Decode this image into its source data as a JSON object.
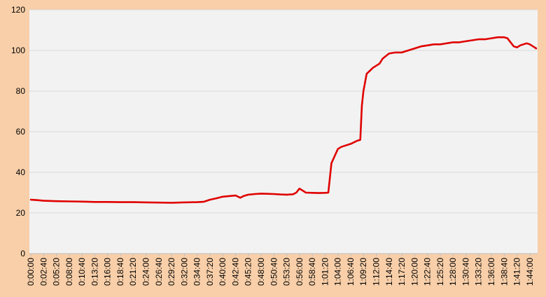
{
  "chart_data": {
    "type": "line",
    "title": "",
    "xlabel": "",
    "ylabel": "",
    "ylim": [
      0,
      120
    ],
    "yticks": [
      0,
      20,
      40,
      60,
      80,
      100,
      120
    ],
    "grid": "horizontal",
    "legend": "none",
    "xtick_labels": [
      "0:00:00",
      "0:02:40",
      "0:05:20",
      "0:08:00",
      "0:10:40",
      "0:13:20",
      "0:16:00",
      "0:18:40",
      "0:21:20",
      "0:24:00",
      "0:26:40",
      "0:29:20",
      "0:32:00",
      "0:34:40",
      "0:37:20",
      "0:40:00",
      "0:42:40",
      "0:45:20",
      "0:48:00",
      "0:50:40",
      "0:53:20",
      "0:56:00",
      "0:58:40",
      "1:01:20",
      "1:04:00",
      "1:06:40",
      "1:09:20",
      "1:12:00",
      "1:14:40",
      "1:17:20",
      "1:20:00",
      "1:22:40",
      "1:25:20",
      "1:28:00",
      "1:30:40",
      "1:33:20",
      "1:36:00",
      "1:38:40",
      "1:41:20",
      "1:44:00"
    ],
    "series": [
      {
        "color": "#e00000",
        "x": [
          "0:00:00",
          "0:01:20",
          "0:02:40",
          "0:05:20",
          "0:08:00",
          "0:10:40",
          "0:13:20",
          "0:16:00",
          "0:18:40",
          "0:21:20",
          "0:24:00",
          "0:26:40",
          "0:29:20",
          "0:32:00",
          "0:34:40",
          "0:36:00",
          "0:37:20",
          "0:38:40",
          "0:40:00",
          "0:41:20",
          "0:42:40",
          "0:43:40",
          "0:44:20",
          "0:45:20",
          "0:46:40",
          "0:48:00",
          "0:49:20",
          "0:50:40",
          "0:52:00",
          "0:53:20",
          "0:54:40",
          "0:55:20",
          "0:56:00",
          "0:57:20",
          "0:58:40",
          "1:00:00",
          "1:01:20",
          "1:02:00",
          "1:02:40",
          "1:03:20",
          "1:04:00",
          "1:04:40",
          "1:05:20",
          "1:06:40",
          "1:08:00",
          "1:08:40",
          "1:09:00",
          "1:09:20",
          "1:10:00",
          "1:10:40",
          "1:11:20",
          "1:12:00",
          "1:12:40",
          "1:13:20",
          "1:14:40",
          "1:16:00",
          "1:17:20",
          "1:18:40",
          "1:20:00",
          "1:21:20",
          "1:22:40",
          "1:24:00",
          "1:25:20",
          "1:26:40",
          "1:28:00",
          "1:29:20",
          "1:30:40",
          "1:32:00",
          "1:33:20",
          "1:34:40",
          "1:36:00",
          "1:37:20",
          "1:38:40",
          "1:39:20",
          "1:40:00",
          "1:40:40",
          "1:41:20",
          "1:42:00",
          "1:42:40",
          "1:43:20",
          "1:44:00",
          "1:44:40",
          "1:45:20"
        ],
        "values": [
          26.5,
          26.3,
          26.0,
          25.8,
          25.7,
          25.6,
          25.4,
          25.4,
          25.3,
          25.3,
          25.2,
          25.1,
          25.0,
          25.2,
          25.3,
          25.5,
          26.5,
          27.2,
          28.0,
          28.3,
          28.6,
          27.5,
          28.3,
          29.0,
          29.3,
          29.5,
          29.4,
          29.3,
          29.1,
          29.0,
          29.2,
          30.0,
          32.0,
          30.0,
          29.9,
          29.8,
          29.9,
          30.0,
          44.5,
          48.0,
          51.5,
          52.5,
          53.0,
          54.0,
          55.5,
          56.0,
          73.0,
          80.0,
          88.5,
          90.0,
          91.5,
          92.5,
          93.5,
          96.0,
          98.5,
          99.0,
          99.0,
          100.0,
          101.0,
          102.0,
          102.5,
          103.0,
          103.0,
          103.5,
          104.0,
          104.0,
          104.5,
          105.0,
          105.5,
          105.5,
          106.0,
          106.5,
          106.5,
          106.0,
          104.0,
          102.0,
          101.5,
          102.5,
          103.0,
          103.5,
          103.0,
          102.0,
          101.0
        ]
      }
    ]
  }
}
